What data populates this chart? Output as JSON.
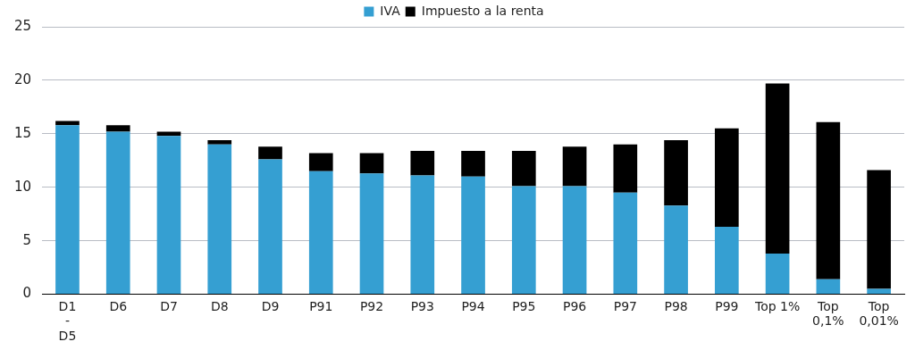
{
  "chart_data": {
    "type": "bar",
    "stacked": true,
    "categories": [
      "D1 - D5",
      "D6",
      "D7",
      "D8",
      "D9",
      "P91",
      "P92",
      "P93",
      "P94",
      "P95",
      "P96",
      "P97",
      "P98",
      "P99",
      "Top 1%",
      "Top 0,1%",
      "Top 0,01%"
    ],
    "series": [
      {
        "name": "IVA",
        "color": "#359fd2",
        "values": [
          15.8,
          15.2,
          14.8,
          14.0,
          12.6,
          11.5,
          11.3,
          11.1,
          11.0,
          10.1,
          10.1,
          9.5,
          8.3,
          6.3,
          3.8,
          1.4,
          0.5
        ]
      },
      {
        "name": "Impuesto a la renta",
        "color": "#000000",
        "values": [
          0.4,
          0.6,
          0.4,
          0.4,
          1.2,
          1.7,
          1.9,
          2.3,
          2.4,
          3.3,
          3.7,
          4.5,
          6.1,
          9.2,
          15.9,
          14.7,
          11.1
        ]
      }
    ],
    "ylim": [
      0,
      25
    ],
    "yticks": [
      0,
      5,
      10,
      15,
      20,
      25
    ],
    "grid": "y",
    "legend": "top"
  }
}
